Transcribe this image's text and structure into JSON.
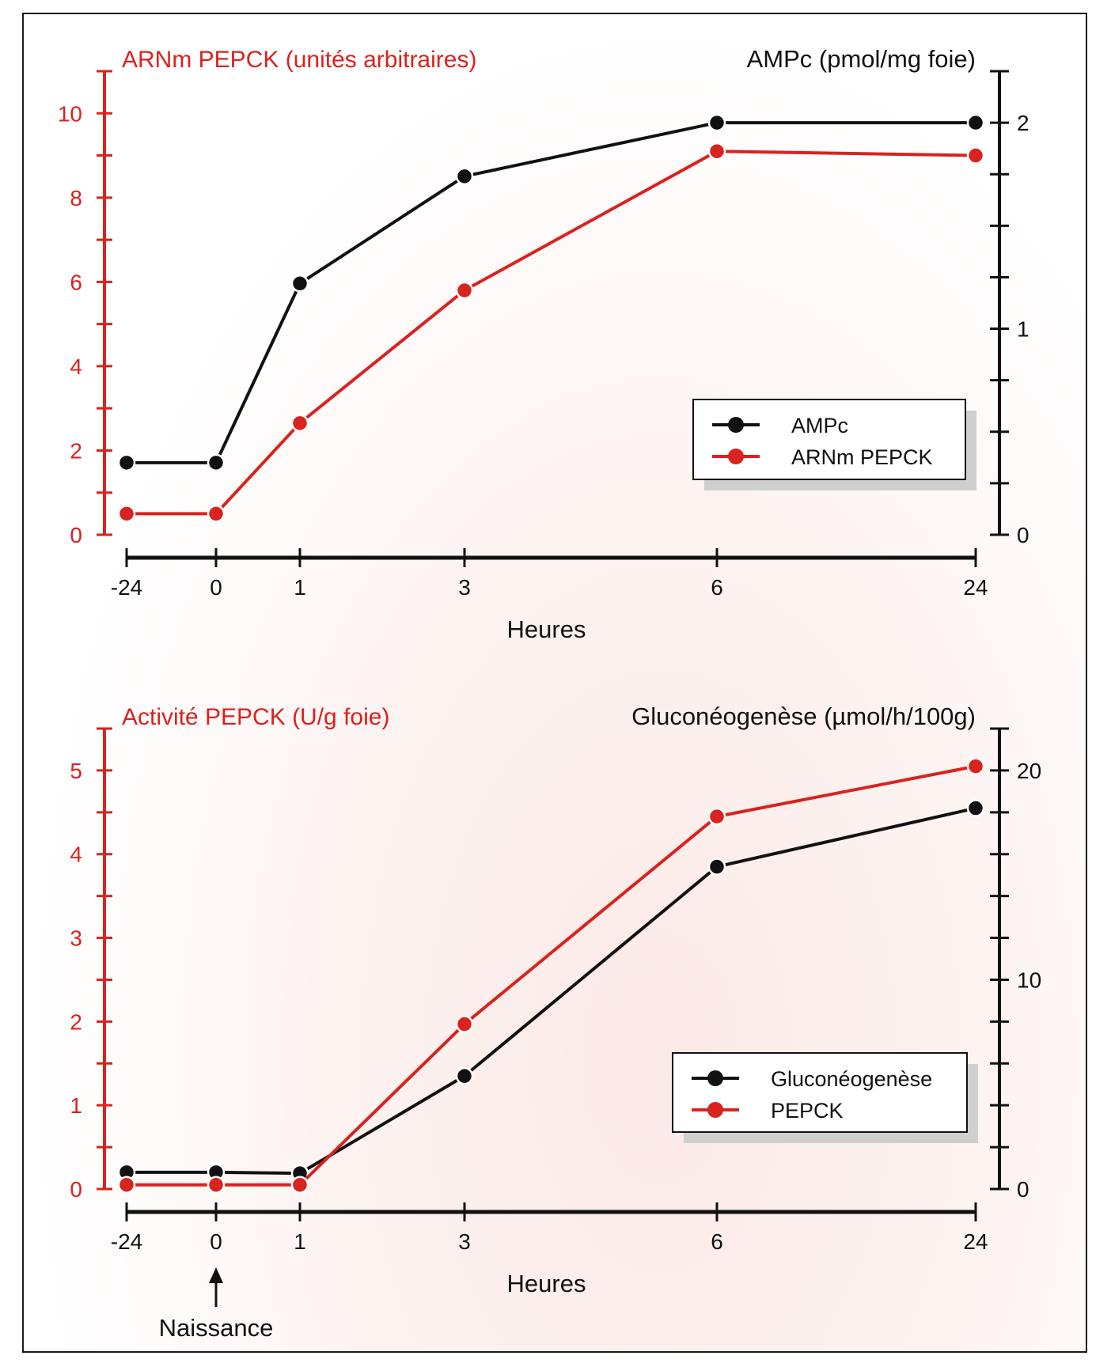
{
  "chart_data": [
    {
      "type": "line",
      "title": "",
      "left_axis_title": "ARNm PEPCK (unités arbitraires)",
      "right_axis_title": "AMPc (pmol/mg foie)",
      "xlabel": "Heures",
      "x_categories": [
        "-24",
        "0",
        "1",
        "3",
        "6",
        "24"
      ],
      "left_ylim": [
        0,
        11
      ],
      "left_ticks": [
        0,
        2,
        4,
        6,
        8,
        10
      ],
      "right_ylim": [
        0,
        2.25
      ],
      "right_ticks": [
        0,
        1,
        2
      ],
      "right_minor_step": 0.25,
      "legend": "bottom-right",
      "series": [
        {
          "name": "AMPc",
          "axis": "right",
          "color": "#111111",
          "values": [
            0.35,
            0.35,
            1.22,
            1.74,
            2.0,
            2.0
          ]
        },
        {
          "name": "ARNm PEPCK",
          "axis": "left",
          "color": "#d8231f",
          "values": [
            0.5,
            0.5,
            2.65,
            5.8,
            9.1,
            9.0
          ]
        }
      ]
    },
    {
      "type": "line",
      "title": "",
      "left_axis_title": "Activité PEPCK (U/g foie)",
      "right_axis_title": "Gluconéogenèse (µmol/h/100g)",
      "xlabel": "Heures",
      "x_categories": [
        "-24",
        "0",
        "1",
        "3",
        "6",
        "24"
      ],
      "x_annotation": {
        "label": "Naissance",
        "at": "0"
      },
      "left_ylim": [
        0,
        5.5
      ],
      "left_ticks": [
        0,
        1,
        2,
        3,
        4,
        5
      ],
      "right_ylim": [
        0,
        22
      ],
      "right_ticks": [
        0,
        10,
        20
      ],
      "right_minor_step": 2,
      "legend": "bottom-right",
      "series": [
        {
          "name": "Gluconéogenèse",
          "axis": "right",
          "color": "#111111",
          "values": [
            0.8,
            0.8,
            0.75,
            5.4,
            15.4,
            18.2
          ]
        },
        {
          "name": "PEPCK",
          "axis": "left",
          "color": "#d8231f",
          "values": [
            0.05,
            0.05,
            0.05,
            1.97,
            4.45,
            5.05
          ]
        }
      ]
    }
  ]
}
